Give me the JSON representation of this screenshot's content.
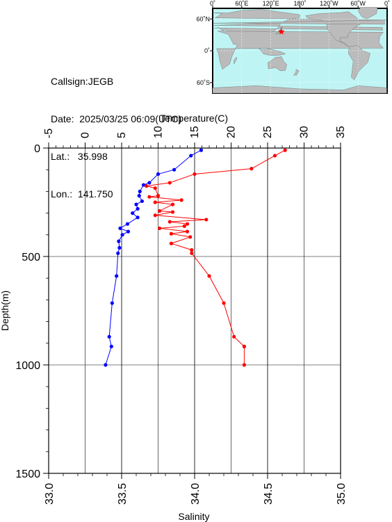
{
  "info": {
    "callsign": "Callsign:JEGB",
    "date": "Date:  2025/03/25 06:09(UTC)",
    "lat": "Lat.:   35.998",
    "lon": "Lon.:  141.750"
  },
  "map": {
    "lon_labels": [
      "0˚",
      "60˚E",
      "120˚E",
      "180˚",
      "120˚W",
      "60˚W",
      "0˚"
    ],
    "lat_labels": [
      "60˚N",
      "0˚",
      "60˚S"
    ],
    "station": {
      "lat": 35.998,
      "lon": 141.75
    },
    "colors": {
      "ocean": "#bff4f4",
      "land": "#bbbbbb",
      "marker": "#ff0000"
    }
  },
  "chart_data": {
    "type": "scatter",
    "title": "",
    "ylabel": "Depth(m)",
    "ylim": [
      0,
      1500
    ],
    "y_inverted": true,
    "y_ticks": [
      0,
      500,
      1000,
      1500
    ],
    "top_axis": {
      "label": "Temperature(C)",
      "range": [
        -5,
        35
      ],
      "ticks": [
        "-5",
        "0",
        "5",
        "10",
        "15",
        "20",
        "25",
        "30",
        "35"
      ],
      "tick_values": [
        -5,
        0,
        5,
        10,
        15,
        20,
        25,
        30,
        35
      ]
    },
    "bottom_axis": {
      "label": "Salinity",
      "range": [
        33.0,
        35.0
      ],
      "ticks": [
        "33.0",
        "33.5",
        "34.0",
        "34.5",
        "35.0"
      ],
      "tick_values": [
        33.0,
        33.5,
        34.0,
        34.5,
        35.0
      ]
    },
    "grid": true,
    "series": [
      {
        "axis": "top",
        "color": "#0000ff",
        "points": [
          [
            15.9,
            10
          ],
          [
            14.5,
            35
          ],
          [
            12.2,
            100
          ],
          [
            10.0,
            120
          ],
          [
            8.8,
            160
          ],
          [
            8.0,
            170
          ],
          [
            7.5,
            200
          ],
          [
            7.4,
            220
          ],
          [
            7.8,
            245
          ],
          [
            7.0,
            260
          ],
          [
            7.2,
            280
          ],
          [
            6.5,
            300
          ],
          [
            7.2,
            320
          ],
          [
            5.8,
            350
          ],
          [
            4.8,
            370
          ],
          [
            5.9,
            385
          ],
          [
            5.1,
            400
          ],
          [
            4.6,
            430
          ],
          [
            4.7,
            460
          ],
          [
            4.5,
            485
          ],
          [
            4.3,
            590
          ],
          [
            3.7,
            715
          ],
          [
            3.3,
            870
          ],
          [
            3.6,
            915
          ],
          [
            2.8,
            1000
          ]
        ]
      },
      {
        "axis": "bottom",
        "color": "#ff0000",
        "points": [
          [
            34.62,
            10
          ],
          [
            34.55,
            35
          ],
          [
            34.39,
            95
          ],
          [
            34.0,
            120
          ],
          [
            33.83,
            160
          ],
          [
            33.67,
            175
          ],
          [
            33.73,
            185
          ],
          [
            33.75,
            220
          ],
          [
            33.69,
            225
          ],
          [
            33.91,
            240
          ],
          [
            33.73,
            250
          ],
          [
            33.85,
            260
          ],
          [
            33.76,
            290
          ],
          [
            33.85,
            295
          ],
          [
            33.73,
            310
          ],
          [
            34.08,
            330
          ],
          [
            33.83,
            340
          ],
          [
            33.95,
            350
          ],
          [
            33.93,
            360
          ],
          [
            33.76,
            370
          ],
          [
            33.95,
            385
          ],
          [
            33.84,
            395
          ],
          [
            33.97,
            410
          ],
          [
            33.84,
            440
          ],
          [
            33.98,
            470
          ],
          [
            33.98,
            485
          ],
          [
            34.1,
            590
          ],
          [
            34.2,
            715
          ],
          [
            34.27,
            870
          ],
          [
            34.34,
            915
          ],
          [
            34.34,
            1000
          ]
        ]
      }
    ]
  }
}
